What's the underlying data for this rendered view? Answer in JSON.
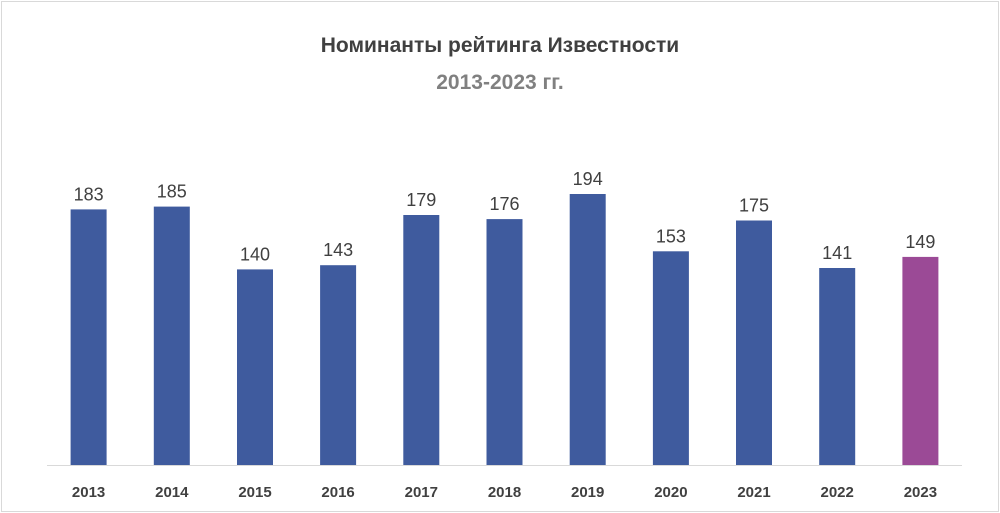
{
  "chart_data": {
    "type": "bar",
    "title": "Номинанты рейтинга Известности",
    "subtitle": "2013-2023 гг.",
    "categories": [
      "2013",
      "2014",
      "2015",
      "2016",
      "2017",
      "2018",
      "2019",
      "2020",
      "2021",
      "2022",
      "2023"
    ],
    "values": [
      183,
      185,
      140,
      143,
      179,
      176,
      194,
      153,
      175,
      141,
      149
    ],
    "ylim": [
      0,
      194
    ],
    "grid": false,
    "legend": "none",
    "bar_color": "#3F5B9E",
    "highlight_color": "#9B4A96",
    "highlight_index": 10
  }
}
